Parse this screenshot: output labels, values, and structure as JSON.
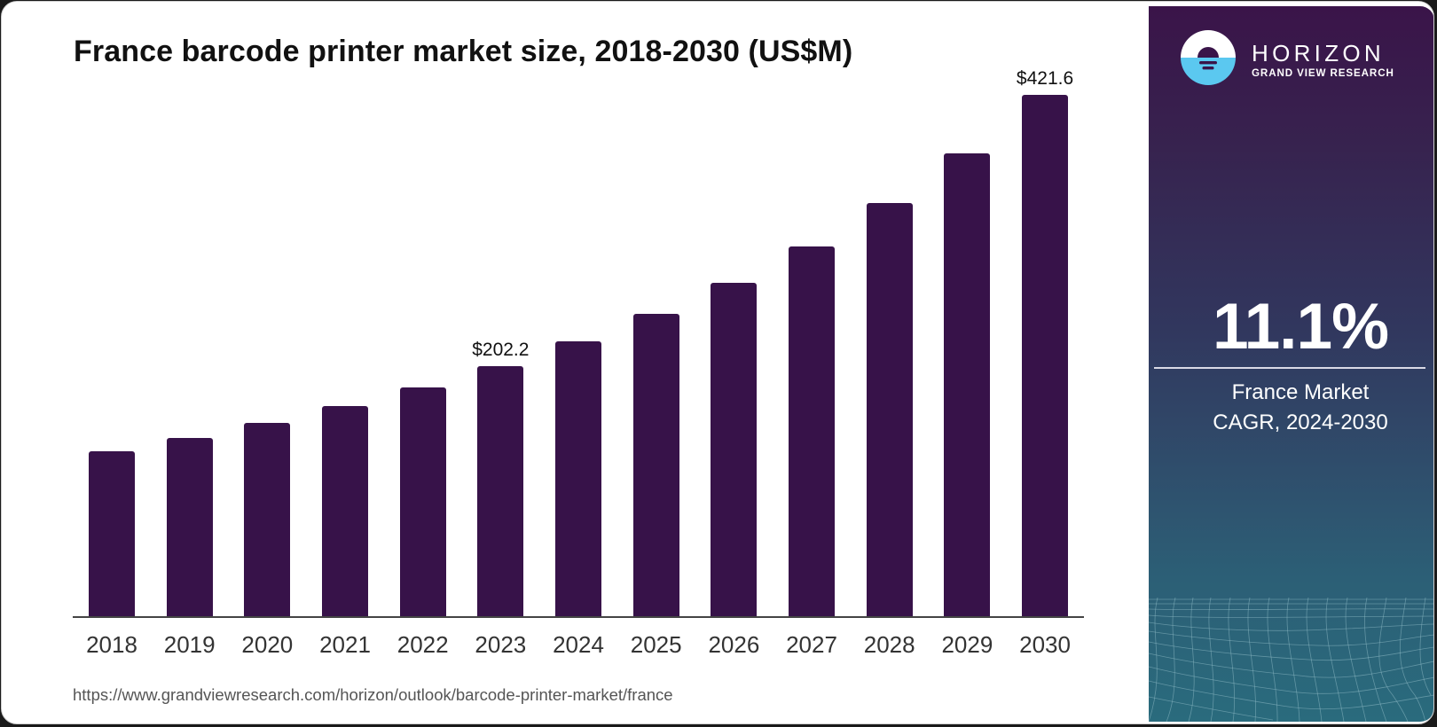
{
  "title": "France barcode printer market size, 2018-2030 (US$M)",
  "source_url": "https://www.grandviewresearch.com/horizon/outlook/barcode-printer-market/france",
  "brand": {
    "name": "HORIZON",
    "subtitle": "GRAND VIEW RESEARCH",
    "logo_icon": "horizon-sun-water-logo"
  },
  "highlight": {
    "value": "11.1%",
    "label_line1": "France Market",
    "label_line2": "CAGR, 2024-2030"
  },
  "colors": {
    "bar": "#371249",
    "panel_top": "#3a1449",
    "panel_bottom": "#2a6b7d",
    "logo_water": "#5bc8f0"
  },
  "chart_data": {
    "type": "bar",
    "title": "France barcode printer market size, 2018-2030 (US$M)",
    "xlabel": "",
    "ylabel": "",
    "categories": [
      "2018",
      "2019",
      "2020",
      "2021",
      "2022",
      "2023",
      "2024",
      "2025",
      "2026",
      "2027",
      "2028",
      "2029",
      "2030"
    ],
    "values": [
      133.4,
      144.1,
      156.3,
      169.9,
      185.0,
      202.2,
      222.3,
      244.5,
      269.6,
      299.0,
      334.1,
      374.3,
      421.6
    ],
    "data_labels": [
      {
        "category": "2023",
        "text": "$202.2"
      },
      {
        "category": "2030",
        "text": "$421.6"
      }
    ],
    "ylim": [
      0,
      421.6
    ],
    "grid": false,
    "legend": "none",
    "series": [
      {
        "name": "France barcode printer market size (US$M)",
        "values": [
          133.4,
          144.1,
          156.3,
          169.9,
          185.0,
          202.2,
          222.3,
          244.5,
          269.6,
          299.0,
          334.1,
          374.3,
          421.6
        ]
      }
    ]
  }
}
